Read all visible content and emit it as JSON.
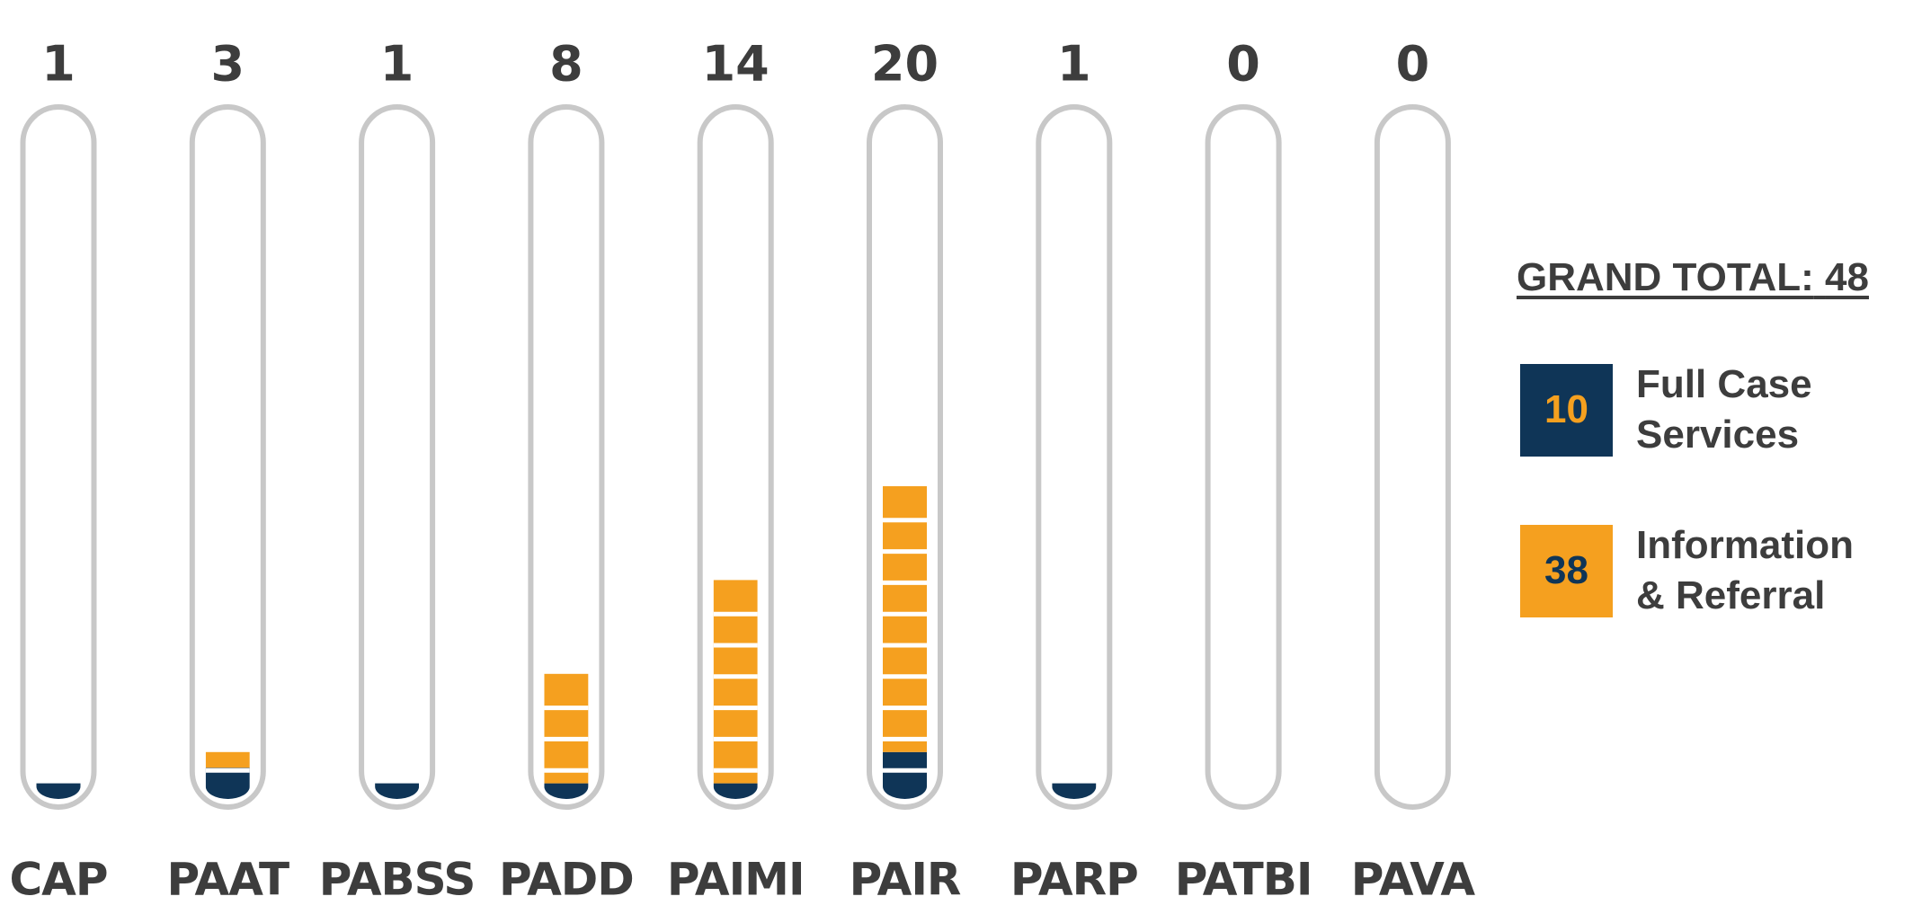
{
  "chart_data": {
    "type": "tube",
    "categories": [
      "CAP",
      "PAAT",
      "PABSS",
      "PADD",
      "PAIMI",
      "PAIR",
      "PARP",
      "PATBI",
      "PAVA"
    ],
    "totals": [
      1,
      3,
      1,
      8,
      14,
      20,
      1,
      0,
      0
    ],
    "series": [
      {
        "name": "Full Case Services",
        "color": "#0f3557",
        "label_color": "#f5a01f",
        "total": 10,
        "values": [
          1,
          2,
          1,
          1,
          1,
          3,
          1,
          0,
          0
        ]
      },
      {
        "name": "Information & Referral",
        "color": "#f5a01f",
        "label_color": "#0f3557",
        "total": 38,
        "values": [
          0,
          1,
          0,
          7,
          13,
          17,
          0,
          0,
          0
        ]
      }
    ],
    "grand_total_label": "GRAND TOTAL:",
    "grand_total": 48
  }
}
